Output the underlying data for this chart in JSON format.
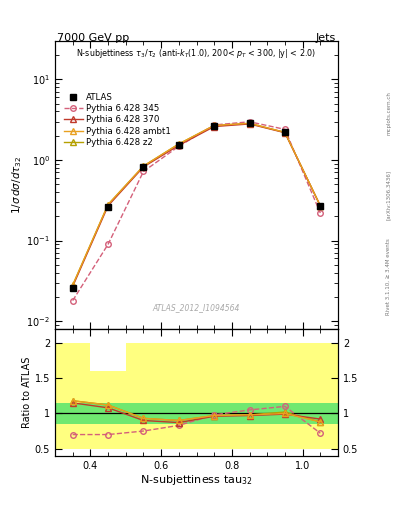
{
  "title_top": "7000 GeV pp",
  "title_right": "Jets",
  "xlabel": "N-subjettiness tau$_{32}$",
  "ylabel_main": "1/σ dσ/dτ_{32}",
  "ylabel_ratio": "Ratio to ATLAS",
  "subplot_label": "N-subjettiness τ₃/τ₂ (anti-kₜ(1.0), 200< pₜ < 300, |y| < 2.0)",
  "watermark": "ATLAS_2012_I1094564",
  "rivet_label": "Rivet 3.1.10, ≥ 3.4M events",
  "arxiv_label": "[arXiv:1306.3436]",
  "mcplots_label": "mcplots.cern.ch",
  "x_values": [
    0.35,
    0.45,
    0.55,
    0.65,
    0.75,
    0.85,
    0.95,
    1.05
  ],
  "atlas_y": [
    0.026,
    0.26,
    0.82,
    1.55,
    2.65,
    2.85,
    2.2,
    0.27
  ],
  "pythia_345_y": [
    0.018,
    0.09,
    0.72,
    1.48,
    2.72,
    2.98,
    2.4,
    0.22
  ],
  "pythia_370_y": [
    0.027,
    0.27,
    0.82,
    1.52,
    2.6,
    2.8,
    2.18,
    0.27
  ],
  "pythia_ambt1_y": [
    0.028,
    0.28,
    0.84,
    1.58,
    2.68,
    2.85,
    2.2,
    0.27
  ],
  "pythia_z2_y": [
    0.028,
    0.28,
    0.84,
    1.58,
    2.68,
    2.85,
    2.2,
    0.27
  ],
  "ratio_345": [
    0.7,
    0.7,
    0.75,
    0.83,
    0.98,
    1.05,
    1.1,
    0.72
  ],
  "ratio_370": [
    1.15,
    1.08,
    0.9,
    0.87,
    0.96,
    0.97,
    0.99,
    0.92
  ],
  "ratio_ambt1": [
    1.18,
    1.12,
    0.93,
    0.9,
    0.97,
    0.98,
    1.0,
    0.88
  ],
  "ratio_z2": [
    1.18,
    1.12,
    0.93,
    0.9,
    0.97,
    0.98,
    1.02,
    0.88
  ],
  "xbins_edges": [
    0.3,
    0.4,
    0.5,
    0.6,
    0.7,
    0.8,
    0.9,
    1.0,
    1.1
  ],
  "yellow_lo": [
    0.5,
    0.5,
    0.5,
    0.5,
    0.5,
    0.5,
    0.5,
    0.5
  ],
  "yellow_hi": [
    2.0,
    1.6,
    2.0,
    2.0,
    2.0,
    2.0,
    2.0,
    2.0
  ],
  "green_lo": 0.85,
  "green_hi": 1.15,
  "color_345": "#d4607a",
  "color_370": "#c0392b",
  "color_ambt1": "#e8a020",
  "color_z2": "#b5a000",
  "color_atlas": "black",
  "color_yellow": "#ffff80",
  "color_green": "#70e870",
  "xlim": [
    0.3,
    1.1
  ],
  "ylim_main": [
    0.008,
    30
  ],
  "ylim_ratio": [
    0.4,
    2.2
  ],
  "yticks_ratio": [
    0.5,
    1.0,
    1.5,
    2.0
  ],
  "ytick_labels_ratio": [
    "0.5",
    "1",
    "1.5",
    "2"
  ]
}
